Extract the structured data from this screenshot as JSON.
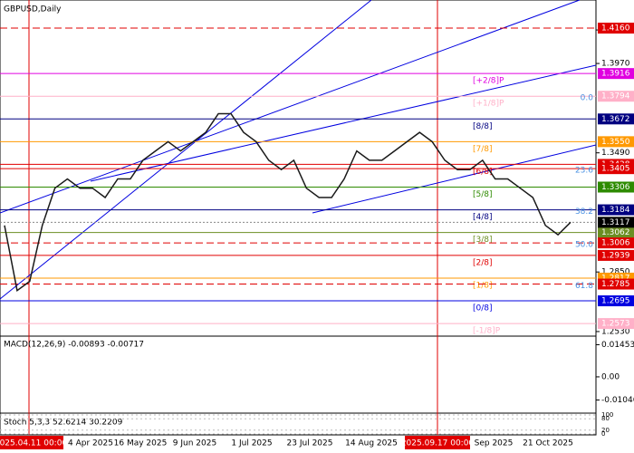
{
  "title": "GBPUSD,Daily",
  "price_axis": {
    "ylim": [
      1.252,
      1.4311
    ],
    "ticks": [
      {
        "value": 1.415,
        "label": "1.4150"
      },
      {
        "value": 1.397,
        "label": "1.3970"
      },
      {
        "value": 1.349,
        "label": "1.3490"
      },
      {
        "value": 1.285,
        "label": "1.2850"
      },
      {
        "value": 1.253,
        "label": "1.2530"
      }
    ]
  },
  "levels": [
    {
      "value": 1.416,
      "label": "1.4160",
      "color": "#e00000",
      "style": "dashed"
    },
    {
      "value": 1.3916,
      "label": "1.3916",
      "color": "#e000e0",
      "style": "solid",
      "murray": "[+2/8]P"
    },
    {
      "value": 1.3794,
      "label": "1.3794",
      "color": "#ffb0c8",
      "style": "solid",
      "murray": "[+1/8]P",
      "fibo": "0.0"
    },
    {
      "value": 1.3672,
      "label": "1.3672",
      "color": "#000080",
      "style": "solid",
      "murray": "[8/8]"
    },
    {
      "value": 1.355,
      "label": "1.3550",
      "color": "#ff9900",
      "style": "solid",
      "murray": "[7/8]"
    },
    {
      "value": 1.3428,
      "label": "1.3428",
      "color": "#e00000",
      "style": "solid",
      "murray": "[6/8]"
    },
    {
      "value": 1.3405,
      "label": "1.3405",
      "color": "#e00000",
      "style": "solid",
      "fibo": "23.6"
    },
    {
      "value": 1.3306,
      "label": "1.3306",
      "color": "#2e8b00",
      "style": "solid",
      "murray": "[5/8]"
    },
    {
      "value": 1.3184,
      "label": "1.3184",
      "color": "#000080",
      "style": "solid",
      "murray": "[4/8]",
      "fibo": "38.2"
    },
    {
      "value": 1.3062,
      "label": "1.3062",
      "color": "#6b8e23",
      "style": "solid",
      "murray": "[3/8]"
    },
    {
      "value": 1.3006,
      "label": "1.3006",
      "color": "#e00000",
      "style": "dashed",
      "fibo": "50.0"
    },
    {
      "value": 1.2939,
      "label": "1.2939",
      "color": "#e00000",
      "style": "solid",
      "murray": "[2/8]"
    },
    {
      "value": 1.2817,
      "label": "1.2817",
      "color": "#ff9900",
      "style": "solid",
      "murray": "[1/8]"
    },
    {
      "value": 1.2785,
      "label": "1.2785",
      "color": "#e00000",
      "style": "dashed",
      "fibo": "61.8"
    },
    {
      "value": 1.2695,
      "label": "1.2695",
      "color": "#0000e0",
      "style": "solid",
      "murray": "[0/8]"
    },
    {
      "value": 1.2573,
      "label": "1.2573",
      "color": "#ffb0c8",
      "style": "solid",
      "murray": "[-1/8]P"
    }
  ],
  "current": {
    "value": 1.3117,
    "label": "1.3117",
    "color": "#000000"
  },
  "close": {
    "color": "#1a1a1a",
    "values": [
      1.31,
      1.275,
      1.28,
      1.31,
      1.33,
      1.335,
      1.33,
      1.33,
      1.325,
      1.335,
      1.335,
      1.345,
      1.35,
      1.355,
      1.35,
      1.355,
      1.36,
      1.37,
      1.37,
      1.36,
      1.355,
      1.345,
      1.34,
      1.345,
      1.33,
      1.325,
      1.325,
      1.335,
      1.35,
      1.345,
      1.345,
      1.35,
      1.355,
      1.36,
      1.355,
      1.345,
      1.34,
      1.34,
      1.345,
      1.335,
      1.335,
      1.33,
      1.325,
      1.31,
      1.305,
      1.3117
    ]
  },
  "macd": {
    "label": "MACD(12,26,9) -0.00893 -0.00717",
    "ylim": [
      -0.016,
      0.018
    ],
    "ticks": [
      {
        "value": 0.01453,
        "label": "0.01453"
      },
      {
        "value": 0,
        "label": "0.00"
      },
      {
        "value": -0.01046,
        "label": "-0.01046"
      }
    ]
  },
  "stoch": {
    "label": "Stoch 5,3,3 52.6214 30.2209",
    "ylim": [
      0,
      100
    ],
    "ticks": [
      100,
      80,
      20,
      0
    ]
  },
  "dates": [
    {
      "label": "2025.04.11 00:00",
      "highlight": true
    },
    {
      "label": "4 Apr 2025"
    },
    {
      "label": "16 May 2025"
    },
    {
      "label": "9 Jun 2025"
    },
    {
      "label": "1 Jul 2025"
    },
    {
      "label": "23 Jul 2025"
    },
    {
      "label": "14 Aug 2025"
    },
    {
      "label": "2025.09.17 00:00",
      "highlight": true
    },
    {
      "label": "Sep 2025"
    },
    {
      "label": "21 Oct 2025"
    }
  ]
}
